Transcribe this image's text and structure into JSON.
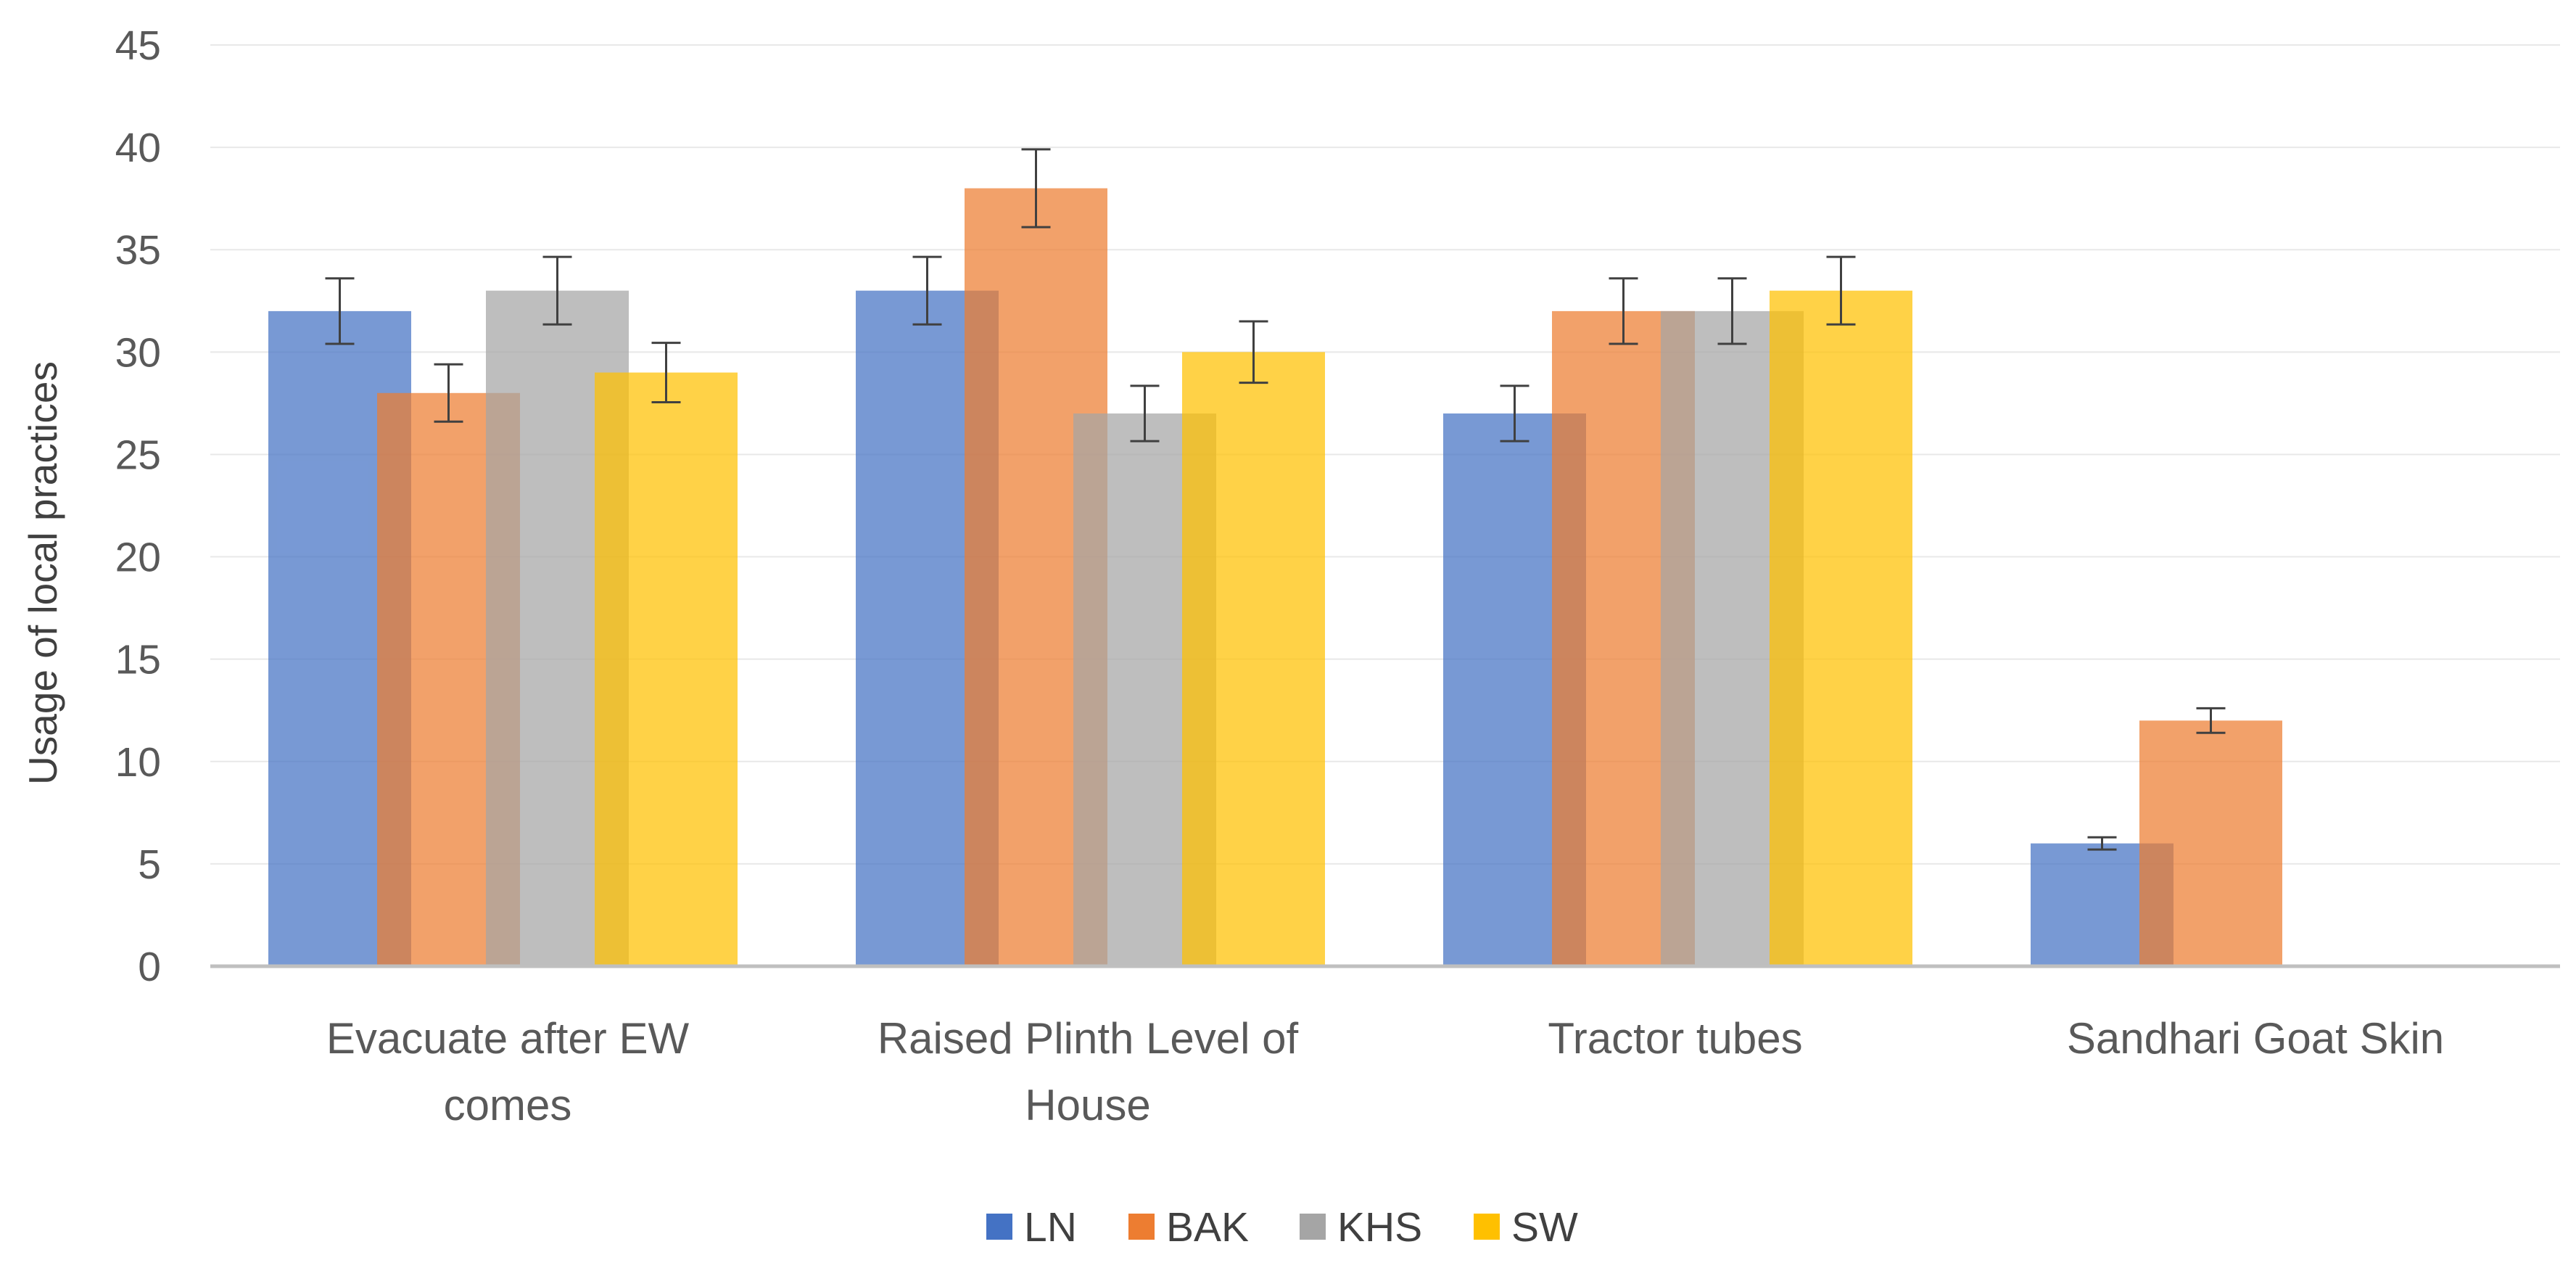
{
  "chart_data": {
    "type": "bar",
    "title": "",
    "xlabel": "",
    "ylabel": "Usage of local practices",
    "ylim": [
      0,
      45
    ],
    "ytick_step": 5,
    "yticks": [
      "0",
      "5",
      "10",
      "15",
      "20",
      "25",
      "30",
      "35",
      "40",
      "45"
    ],
    "grid": true,
    "legend_position": "bottom-center",
    "categories": [
      [
        "Evacuate after EW",
        "comes"
      ],
      [
        "Raised Plinth Level of",
        "House"
      ],
      [
        "Tractor tubes"
      ],
      [
        "Sandhari Goat Skin"
      ]
    ],
    "series": [
      {
        "name": "LN",
        "color": "#4472C4",
        "values": [
          32,
          33,
          27,
          6
        ],
        "errors": [
          1.6,
          1.65,
          1.35,
          0.3
        ]
      },
      {
        "name": "BAK",
        "color": "#ED7D31",
        "values": [
          28,
          38,
          32,
          12
        ],
        "errors": [
          1.4,
          1.9,
          1.6,
          0.6
        ]
      },
      {
        "name": "KHS",
        "color": "#A5A5A5",
        "values": [
          33,
          27,
          32,
          null
        ],
        "errors": [
          1.65,
          1.35,
          1.6,
          null
        ]
      },
      {
        "name": "SW",
        "color": "#FFC000",
        "values": [
          29,
          30,
          33,
          null
        ],
        "errors": [
          1.45,
          1.5,
          1.65,
          null
        ]
      }
    ]
  }
}
